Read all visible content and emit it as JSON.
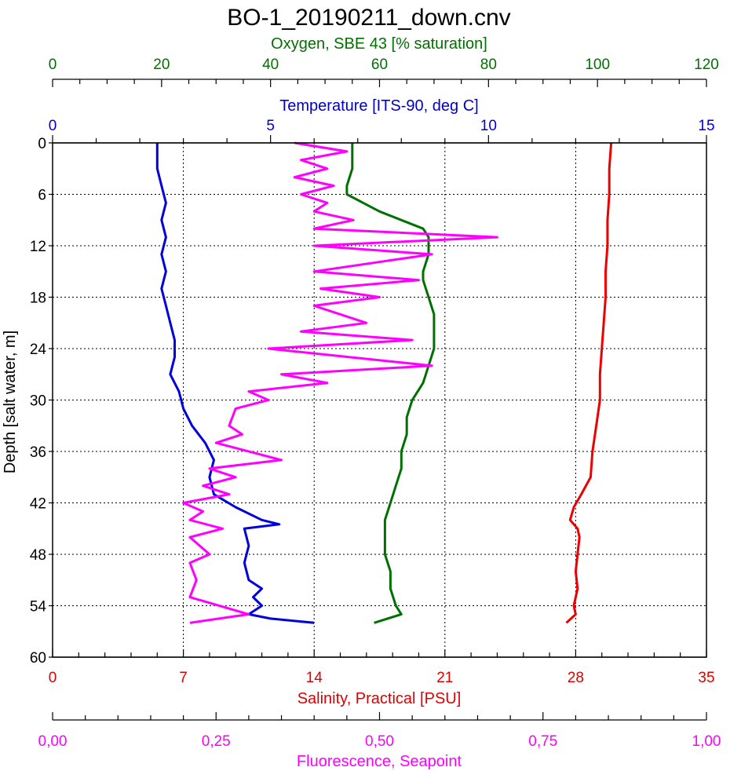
{
  "chart_data": {
    "type": "line",
    "title": "BO-1_20190211_down.cnv",
    "y_axis": {
      "label": "Depth [salt water, m]",
      "range": [
        0,
        60
      ],
      "inverted": true,
      "ticks": [
        "0",
        "6",
        "12",
        "18",
        "24",
        "30",
        "36",
        "42",
        "48",
        "54",
        "60"
      ]
    },
    "x_axes": [
      {
        "id": "oxygen",
        "label": "Oxygen, SBE 43 [% saturation]",
        "range": [
          0,
          120
        ],
        "ticks": [
          "0",
          "20",
          "40",
          "60",
          "80",
          "100",
          "120"
        ],
        "color": "#007000",
        "position": "top"
      },
      {
        "id": "temperature",
        "label": "Temperature [ITS-90, deg C]",
        "range": [
          0,
          15
        ],
        "ticks": [
          "0",
          "5",
          "10",
          "15"
        ],
        "color": "#0000cc",
        "position": "top"
      },
      {
        "id": "salinity",
        "label": "Salinity, Practical [PSU]",
        "range": [
          0,
          35
        ],
        "ticks": [
          "0",
          "7",
          "14",
          "21",
          "28",
          "35"
        ],
        "color": "#dd0000",
        "position": "bottom"
      },
      {
        "id": "fluorescence",
        "label": "Fluorescence, Seapoint",
        "range": [
          0,
          1
        ],
        "ticks": [
          "0,00",
          "0,25",
          "0,50",
          "0,75",
          "1,00"
        ],
        "color": "#ff00ff",
        "position": "bottom"
      }
    ],
    "grid": true,
    "series": [
      {
        "axis": "temperature",
        "color": "#0000dd",
        "points": [
          [
            2.4,
            0
          ],
          [
            2.4,
            3
          ],
          [
            2.5,
            5
          ],
          [
            2.6,
            7
          ],
          [
            2.5,
            9
          ],
          [
            2.6,
            11
          ],
          [
            2.5,
            13
          ],
          [
            2.6,
            15
          ],
          [
            2.5,
            17
          ],
          [
            2.6,
            19
          ],
          [
            2.7,
            21
          ],
          [
            2.8,
            23
          ],
          [
            2.8,
            25
          ],
          [
            2.7,
            27
          ],
          [
            2.9,
            29
          ],
          [
            3.0,
            31
          ],
          [
            3.2,
            33
          ],
          [
            3.5,
            35
          ],
          [
            3.7,
            37
          ],
          [
            3.6,
            39
          ],
          [
            3.7,
            41
          ],
          [
            4.2,
            42.5
          ],
          [
            4.8,
            44
          ],
          [
            5.2,
            44.5
          ],
          [
            4.4,
            45
          ],
          [
            4.5,
            47
          ],
          [
            4.4,
            49
          ],
          [
            4.5,
            51
          ],
          [
            4.8,
            52
          ],
          [
            4.6,
            53
          ],
          [
            4.8,
            54
          ],
          [
            4.5,
            55
          ],
          [
            5.0,
            55.5
          ],
          [
            6.0,
            56
          ]
        ]
      },
      {
        "axis": "oxygen",
        "color": "#007000",
        "points": [
          [
            55,
            0
          ],
          [
            55,
            3
          ],
          [
            54,
            5
          ],
          [
            54,
            6
          ],
          [
            57,
            7
          ],
          [
            60,
            8
          ],
          [
            64,
            9
          ],
          [
            68,
            10
          ],
          [
            69,
            11
          ],
          [
            69,
            13
          ],
          [
            68,
            15
          ],
          [
            68,
            16
          ],
          [
            69,
            18
          ],
          [
            70,
            20
          ],
          [
            70,
            22
          ],
          [
            70,
            24
          ],
          [
            69,
            26
          ],
          [
            68,
            28
          ],
          [
            66,
            30
          ],
          [
            65,
            32
          ],
          [
            65,
            34
          ],
          [
            64,
            36
          ],
          [
            64,
            38
          ],
          [
            63,
            40
          ],
          [
            62,
            42
          ],
          [
            61,
            44
          ],
          [
            61,
            46
          ],
          [
            61,
            48
          ],
          [
            62,
            50
          ],
          [
            62,
            52
          ],
          [
            63,
            54
          ],
          [
            64,
            55
          ],
          [
            59,
            56
          ]
        ]
      },
      {
        "axis": "salinity",
        "color": "#ee0000",
        "points": [
          [
            29.9,
            0
          ],
          [
            29.8,
            3
          ],
          [
            29.8,
            6
          ],
          [
            29.7,
            9
          ],
          [
            29.7,
            12
          ],
          [
            29.6,
            15
          ],
          [
            29.6,
            18
          ],
          [
            29.5,
            21
          ],
          [
            29.4,
            24
          ],
          [
            29.3,
            27
          ],
          [
            29.3,
            30
          ],
          [
            29.1,
            33
          ],
          [
            28.9,
            36
          ],
          [
            28.8,
            39
          ],
          [
            28.3,
            41
          ],
          [
            27.9,
            42.5
          ],
          [
            27.7,
            44
          ],
          [
            28.1,
            45
          ],
          [
            28.2,
            46
          ],
          [
            28.1,
            48
          ],
          [
            28.0,
            50
          ],
          [
            28.1,
            52
          ],
          [
            27.9,
            54
          ],
          [
            28.0,
            55
          ],
          [
            27.5,
            56
          ]
        ]
      },
      {
        "axis": "fluorescence",
        "color": "#ff00ff",
        "points": [
          [
            0.37,
            0
          ],
          [
            0.45,
            1
          ],
          [
            0.38,
            2
          ],
          [
            0.42,
            3
          ],
          [
            0.37,
            4
          ],
          [
            0.43,
            5
          ],
          [
            0.38,
            6
          ],
          [
            0.42,
            7
          ],
          [
            0.4,
            8
          ],
          [
            0.46,
            9
          ],
          [
            0.4,
            10
          ],
          [
            0.68,
            11
          ],
          [
            0.4,
            12
          ],
          [
            0.58,
            13
          ],
          [
            0.4,
            15
          ],
          [
            0.56,
            16
          ],
          [
            0.41,
            17
          ],
          [
            0.5,
            18
          ],
          [
            0.4,
            19
          ],
          [
            0.48,
            21
          ],
          [
            0.38,
            22
          ],
          [
            0.55,
            23
          ],
          [
            0.33,
            24
          ],
          [
            0.58,
            26
          ],
          [
            0.35,
            27
          ],
          [
            0.42,
            28
          ],
          [
            0.3,
            29
          ],
          [
            0.33,
            30
          ],
          [
            0.28,
            31
          ],
          [
            0.27,
            33
          ],
          [
            0.29,
            34
          ],
          [
            0.25,
            35
          ],
          [
            0.35,
            37
          ],
          [
            0.24,
            38
          ],
          [
            0.28,
            39
          ],
          [
            0.23,
            40
          ],
          [
            0.27,
            41
          ],
          [
            0.2,
            42
          ],
          [
            0.23,
            43
          ],
          [
            0.21,
            44
          ],
          [
            0.26,
            45
          ],
          [
            0.21,
            46
          ],
          [
            0.24,
            48
          ],
          [
            0.21,
            49
          ],
          [
            0.22,
            51
          ],
          [
            0.21,
            53
          ],
          [
            0.3,
            55
          ],
          [
            0.21,
            56
          ]
        ]
      }
    ]
  }
}
